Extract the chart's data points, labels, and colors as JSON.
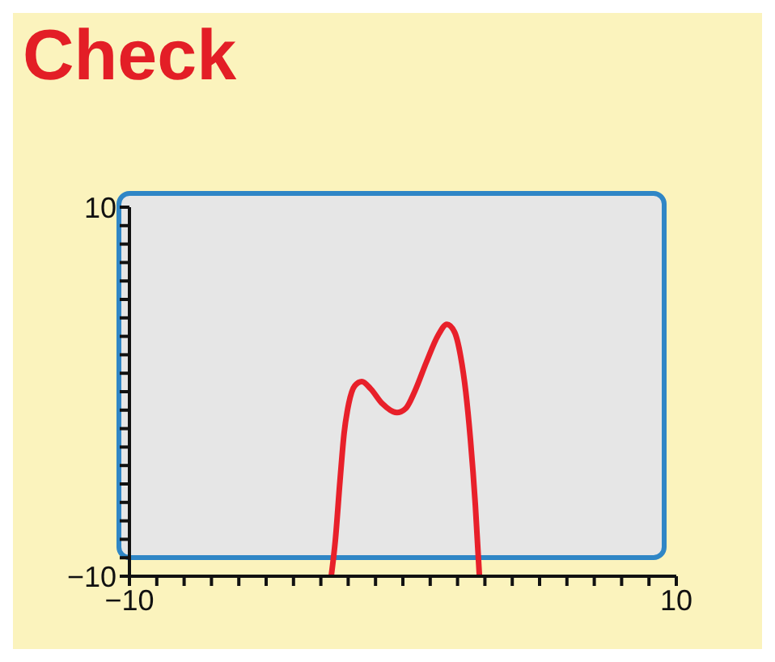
{
  "chart_data": {
    "type": "line",
    "title": "Check",
    "x": [
      -2.62,
      -2.47,
      -2.3,
      -2.15,
      -1.98,
      -1.76,
      -1.5,
      -1.18,
      -0.75,
      -0.22,
      0.11,
      0.43,
      0.86,
      1.29,
      1.61,
      1.89,
      2.11,
      2.3,
      2.47,
      2.65,
      2.8
    ],
    "series": [
      {
        "color": "#e8202a",
        "values": [
          -10,
          -8.06,
          -4.84,
          -2.26,
          -0.65,
          0.32,
          0.55,
          0.16,
          -0.65,
          -1.13,
          -0.9,
          0,
          1.6,
          3.06,
          3.65,
          3.23,
          1.94,
          0,
          -2.58,
          -6.13,
          -10
        ]
      }
    ],
    "xlim": [
      -10,
      10
    ],
    "ylim": [
      -10,
      10
    ],
    "xticks": [
      {
        "value": -10,
        "label": "−10"
      },
      {
        "value": -9,
        "label": null
      },
      {
        "value": -8,
        "label": null
      },
      {
        "value": -7,
        "label": null
      },
      {
        "value": -6,
        "label": null
      },
      {
        "value": -5,
        "label": null
      },
      {
        "value": -4,
        "label": null
      },
      {
        "value": -3,
        "label": null
      },
      {
        "value": -2,
        "label": null
      },
      {
        "value": -1,
        "label": null
      },
      {
        "value": 0,
        "label": null
      },
      {
        "value": 1,
        "label": null
      },
      {
        "value": 2,
        "label": null
      },
      {
        "value": 3,
        "label": null
      },
      {
        "value": 4,
        "label": null
      },
      {
        "value": 5,
        "label": null
      },
      {
        "value": 6,
        "label": null
      },
      {
        "value": 7,
        "label": null
      },
      {
        "value": 8,
        "label": null
      },
      {
        "value": 9,
        "label": null
      },
      {
        "value": 10,
        "label": "10"
      }
    ],
    "yticks": [
      {
        "value": -10,
        "label": "−10"
      },
      {
        "value": -9,
        "label": null
      },
      {
        "value": -8,
        "label": null
      },
      {
        "value": -7,
        "label": null
      },
      {
        "value": -6,
        "label": null
      },
      {
        "value": -5,
        "label": null
      },
      {
        "value": -4,
        "label": null
      },
      {
        "value": -3,
        "label": null
      },
      {
        "value": -2,
        "label": null
      },
      {
        "value": -1,
        "label": null
      },
      {
        "value": 0,
        "label": null
      },
      {
        "value": 1,
        "label": null
      },
      {
        "value": 2,
        "label": null
      },
      {
        "value": 3,
        "label": null
      },
      {
        "value": 4,
        "label": null
      },
      {
        "value": 5,
        "label": null
      },
      {
        "value": 6,
        "label": null
      },
      {
        "value": 7,
        "label": null
      },
      {
        "value": 8,
        "label": null
      },
      {
        "value": 9,
        "label": null
      },
      {
        "value": 10,
        "label": "10"
      }
    ],
    "grid": false,
    "legend": false,
    "marker": "none",
    "line_style": "solid"
  }
}
